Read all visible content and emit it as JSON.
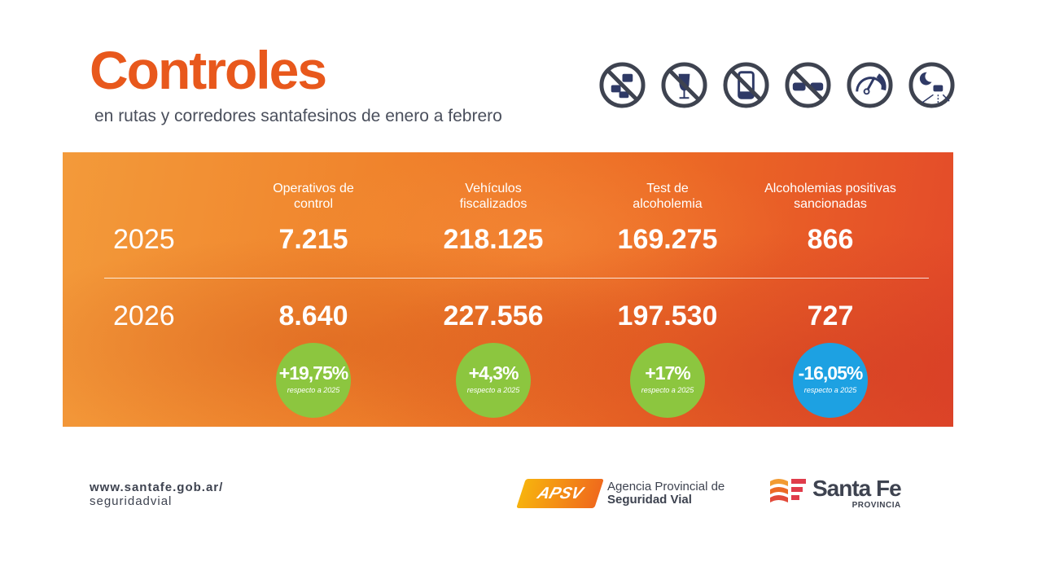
{
  "header": {
    "title": "Controles",
    "subtitle": "en rutas y corredores santafesinos de enero a febrero"
  },
  "icons": [
    "no-traffic-jam-icon",
    "no-alcohol-icon",
    "no-phone-icon",
    "no-overtaking-icon",
    "speedometer-icon",
    "night-driving-icon"
  ],
  "table": {
    "columns": [
      {
        "label": "Operativos de control",
        "v2025": "7.215",
        "v2026": "8.640",
        "change": "+19,75%",
        "color": "#8cc63f"
      },
      {
        "label": "Vehículos fiscalizados",
        "v2025": "218.125",
        "v2026": "227.556",
        "change": "+4,3%",
        "color": "#8cc63f"
      },
      {
        "label": "Test de alcoholemia",
        "v2025": "169.275",
        "v2026": "197.530",
        "change": "+17%",
        "color": "#8cc63f"
      },
      {
        "label": "Alcoholemias positivas sancionadas",
        "v2025": "866",
        "v2026": "727",
        "change": "-16,05%",
        "color": "#1da1e2"
      }
    ],
    "year1": "2025",
    "year2": "2026",
    "change_note": "respecto a 2025"
  },
  "footer": {
    "url_line1": "www.santafe.gob.ar/",
    "url_line2": "seguridadvial",
    "apsv_logo": "APSV",
    "apsv_line1": "Agencia Provincial de",
    "apsv_line2": "Seguridad Vial",
    "sf_name": "Santa Fe",
    "sf_sub": "PROVINCIA"
  },
  "colors": {
    "accent": "#e8581c",
    "text": "#3e4350"
  }
}
